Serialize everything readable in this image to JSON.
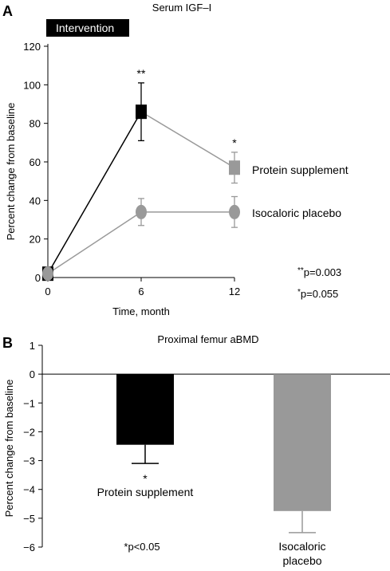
{
  "chart_data": [
    {
      "panel_label": "A",
      "type": "line",
      "title": "Serum IGF–I",
      "banner": "Intervention",
      "xlabel": "Time, month",
      "ylabel": "Percent change from baseline",
      "xticks": [
        "0",
        "6",
        "12"
      ],
      "yticks": [
        "0",
        "20",
        "40",
        "60",
        "80",
        "100",
        "120"
      ],
      "xlim": [
        0,
        12
      ],
      "ylim": [
        0,
        120
      ],
      "grid": false,
      "series": [
        {
          "name": "Protein supplement",
          "color": "#000000",
          "line_color_after_6": "#999999",
          "marker": "square",
          "x": [
            0,
            6,
            12
          ],
          "y": [
            2,
            86,
            57
          ],
          "err": [
            0,
            15,
            8
          ],
          "sig": [
            "",
            "**",
            "*"
          ]
        },
        {
          "name": "Isocaloric placebo",
          "color": "#999999",
          "marker": "circle",
          "x": [
            0,
            6,
            12
          ],
          "y": [
            2,
            34,
            34
          ],
          "err": [
            0,
            7,
            8
          ],
          "sig": [
            "",
            "",
            ""
          ]
        }
      ],
      "pvalue_notes": [
        {
          "stars": "**",
          "text": "p=0.003"
        },
        {
          "stars": "*",
          "text": "p=0.055"
        }
      ]
    },
    {
      "panel_label": "B",
      "type": "bar",
      "title": "Proximal femur aBMD",
      "ylabel": "Percent change from baseline",
      "ylim": [
        -6,
        1
      ],
      "yticks": [
        "1",
        "0",
        "−1",
        "−2",
        "−3",
        "−4",
        "−5",
        "−6"
      ],
      "grid": false,
      "categories": [
        "Protein supplement",
        "Isocaloric placebo"
      ],
      "category_label_lines": [
        [
          "Protein supplement"
        ],
        [
          "Isocaloric",
          "placebo"
        ]
      ],
      "values": [
        -2.45,
        -4.75
      ],
      "err": [
        0.65,
        0.75
      ],
      "colors": [
        "#000000",
        "#999999"
      ],
      "sig": [
        "*",
        ""
      ],
      "note": "*p<0.05"
    }
  ]
}
